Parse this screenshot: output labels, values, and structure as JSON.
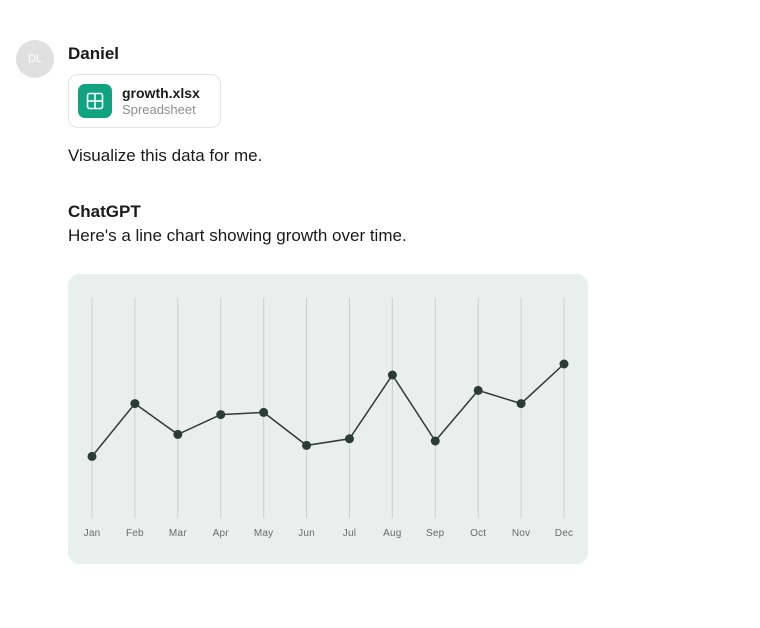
{
  "user": {
    "initials": "DL",
    "name": "Daniel",
    "avatar_bg": "#e0e0e0",
    "avatar_fg": "#ffffff"
  },
  "attachment": {
    "filename": "growth.xlsx",
    "kind": "Spreadsheet",
    "icon_bg": "#10a37f",
    "icon_fg": "#ffffff"
  },
  "user_prompt": "Visualize this data for me.",
  "assistant": {
    "name": "ChatGPT",
    "reply": "Here's a line chart showing growth over time."
  },
  "chart": {
    "type": "line",
    "background_color": "#e9efed",
    "grid_color": "#c7d0cd",
    "line_color": "#2d3b36",
    "marker_color": "#2d3b36",
    "marker_radius": 4.5,
    "line_width": 1.5,
    "ylim": [
      0,
      100
    ],
    "categories": [
      "Jan",
      "Feb",
      "Mar",
      "Apr",
      "May",
      "Jun",
      "Jul",
      "Aug",
      "Sep",
      "Oct",
      "Nov",
      "Dec"
    ],
    "values": [
      28,
      52,
      38,
      47,
      48,
      33,
      36,
      65,
      35,
      58,
      52,
      70
    ],
    "label_color": "#6b6b6b",
    "label_fontsize": 10
  }
}
